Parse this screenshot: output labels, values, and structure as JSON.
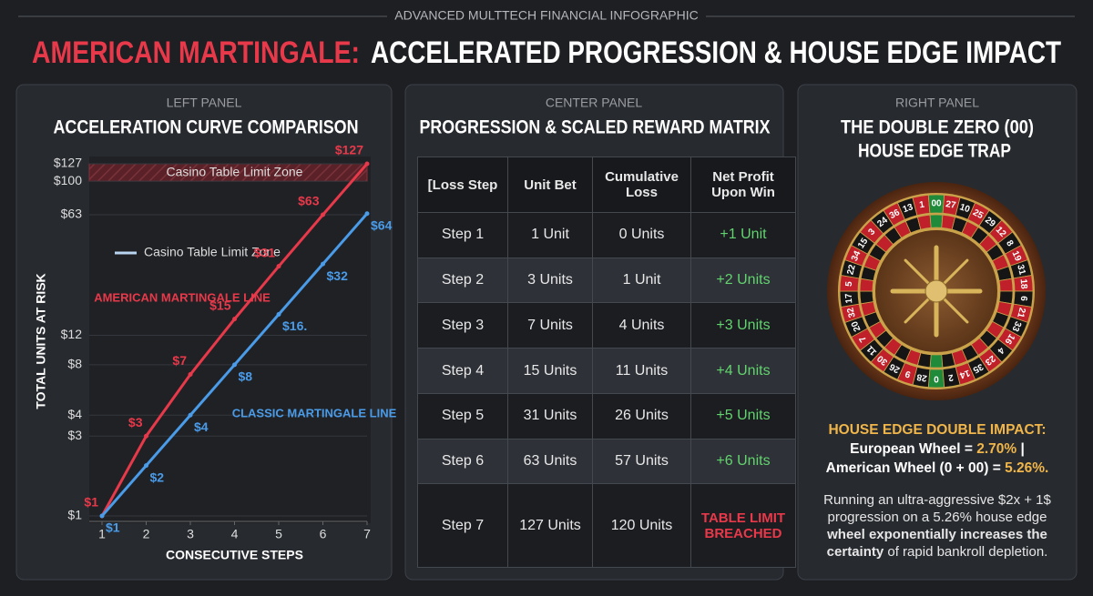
{
  "header": {
    "kicker": "ADVANCED MULTTECH FINANCIAL INFOGRAPHIC",
    "title_highlight": "AMERICAN MARTINGALE:",
    "title_rest": "ACCELERATED PROGRESSION & HOUSE EDGE IMPACT"
  },
  "chart_data": {
    "type": "line",
    "panel_label": "LEFT PANEL",
    "title": "ACCELERATION CURVE COMPARISON",
    "x": [
      1,
      2,
      3,
      4,
      5,
      6,
      7
    ],
    "xlim": [
      1,
      7
    ],
    "xticks": [
      1,
      2,
      3,
      4,
      5,
      6,
      7
    ],
    "ylim": [
      1,
      127
    ],
    "log_y": true,
    "yticks": [
      {
        "value": 1,
        "label": "$1"
      },
      {
        "value": 3,
        "label": "$3"
      },
      {
        "value": 4,
        "label": "$4"
      },
      {
        "value": 8,
        "label": "$8"
      },
      {
        "value": 12,
        "label": "$12"
      },
      {
        "value": 63,
        "label": "$63"
      },
      {
        "value": 100,
        "label": "$100"
      },
      {
        "value": 127,
        "label": "$127"
      }
    ],
    "grid": true,
    "xlabel": "CONSECUTIVE STEPS",
    "ylabel": "TOTAL UNITS AT RISK",
    "limit_zone": {
      "label": "Casino Table Limit Zone",
      "range": [
        100,
        127
      ],
      "color": "#8a2f38"
    },
    "legend_label": "Casino Table Limit Zone",
    "series": [
      {
        "name": "AMERICAN MARTINGALE LINE",
        "color": "#e8394a",
        "values": [
          1,
          3,
          7,
          15,
          31,
          63,
          127
        ],
        "value_labels": [
          "$1",
          "$3",
          "$7",
          "$15",
          "$31",
          "$63",
          "$127"
        ]
      },
      {
        "name": "CLASSIC MARTINGALE LINE",
        "color": "#4a9be8",
        "values": [
          1,
          2,
          4,
          8,
          16,
          32,
          64
        ],
        "value_labels": [
          "$1",
          "$2",
          "$4",
          "$8",
          "$16.",
          "$32",
          "$64"
        ]
      }
    ]
  },
  "center": {
    "panel_label": "CENTER PANEL",
    "title": "PROGRESSION & SCALED REWARD MATRIX",
    "table": {
      "header": [
        "[Loss Step",
        "Unit Bet",
        "Cumulative Loss",
        "Net Profit Upon Win"
      ],
      "rows": [
        [
          "Step 1",
          "1 Unit",
          "0 Units",
          "+1 Unit"
        ],
        [
          "Step 2",
          "3 Units",
          "1 Unit",
          "+2 Units"
        ],
        [
          "Step 3",
          "7 Units",
          "4 Units",
          "+3 Units"
        ],
        [
          "Step 4",
          "15 Units",
          "11 Units",
          "+4 Units"
        ],
        [
          "Step 5",
          "31 Units",
          "26 Units",
          "+5 Units"
        ],
        [
          "Step 6",
          "63 Units",
          "57 Units",
          "+6 Units"
        ],
        [
          "Step 7",
          "127 Units",
          "120 Units",
          "TABLE LIMIT BREACHED"
        ]
      ]
    }
  },
  "right": {
    "panel_label": "RIGHT PANEL",
    "title_lines": [
      "THE DOUBLE ZERO (00)",
      "HOUSE EDGE TRAP"
    ],
    "wheel_numbers": [
      "0",
      "28",
      "9",
      "26",
      "30",
      "11",
      "7",
      "20",
      "32",
      "17",
      "5",
      "22",
      "34",
      "15",
      "3",
      "24",
      "36",
      "13",
      "1",
      "00",
      "27",
      "10",
      "25",
      "29",
      "12",
      "8",
      "19",
      "31",
      "18",
      "6",
      "21",
      "33",
      "16",
      "4",
      "23",
      "35",
      "14",
      "2"
    ],
    "impact_heading": "HOUSE EDGE DOUBLE IMPACT:",
    "european": {
      "label": "European Wheel =",
      "value": "2.70%",
      "suffix": "|"
    },
    "american": {
      "label": "American Wheel (0 + 00) =",
      "value": "5.26%."
    },
    "body_start": "Running an ultra-aggressive $2x + 1$ progression on a 5.26% house edge",
    "body_bold": "wheel exponentially increases the certainty",
    "body_end": "of rapid bankroll depletion."
  }
}
